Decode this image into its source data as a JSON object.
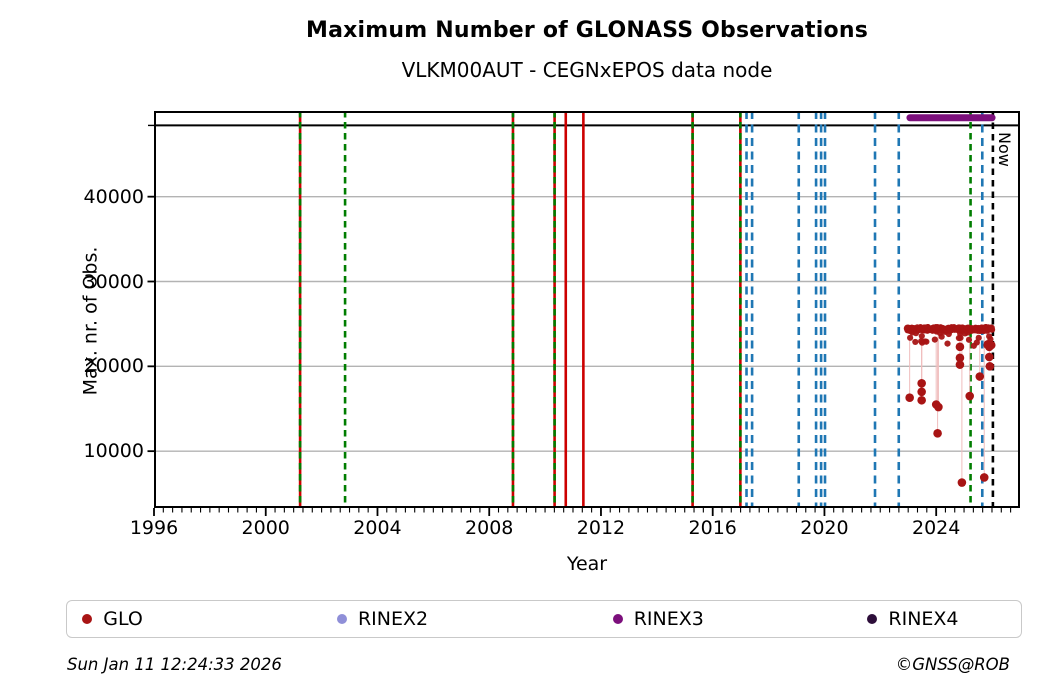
{
  "chart_data": {
    "type": "scatter",
    "title": "Maximum Number of GLONASS Observations",
    "subtitle": "VLKM00AUT - CEGNxEPOS data node",
    "xlabel": "Year",
    "ylabel": "Max. nr. of Obs.",
    "xlim": [
      1996,
      2027.0
    ],
    "ylim": [
      3300,
      50100
    ],
    "xticks": [
      1996,
      2000,
      2004,
      2008,
      2012,
      2016,
      2020,
      2024
    ],
    "x_minor_step_years": 0.3333,
    "yticks": [
      10000,
      20000,
      30000,
      40000
    ],
    "grid": "horizontal",
    "colors": {
      "glo": "#a81414",
      "rinex2": "#8f8fd8",
      "rinex3": "#7c0f7c",
      "rinex4": "#2d0e3a",
      "event_red": "#cc0000",
      "event_green": "#007d00",
      "event_blue": "#1f77b4",
      "now_line": "#000000",
      "grid": "#b3b3b3",
      "connector": "#f0bdbd",
      "spine": "#000000"
    },
    "availability_strip": {
      "divider_value": 48400,
      "bars": [
        {
          "name": "RINEX3",
          "color_key": "rinex3",
          "year_start": 2023.06,
          "year_end": 2026.0,
          "value": 49300
        }
      ]
    },
    "event_lines": [
      {
        "year": 2001.23,
        "color_key": "event_red",
        "style": "solid"
      },
      {
        "year": 2001.23,
        "color_key": "event_green",
        "style": "dashed"
      },
      {
        "year": 2002.84,
        "color_key": "event_green",
        "style": "dashed"
      },
      {
        "year": 2008.85,
        "color_key": "event_red",
        "style": "solid"
      },
      {
        "year": 2008.85,
        "color_key": "event_green",
        "style": "dashed"
      },
      {
        "year": 2010.34,
        "color_key": "event_red",
        "style": "solid"
      },
      {
        "year": 2010.34,
        "color_key": "event_green",
        "style": "dashed"
      },
      {
        "year": 2010.74,
        "color_key": "event_red",
        "style": "solid"
      },
      {
        "year": 2011.37,
        "color_key": "event_red",
        "style": "solid"
      },
      {
        "year": 2015.28,
        "color_key": "event_red",
        "style": "solid"
      },
      {
        "year": 2015.28,
        "color_key": "event_green",
        "style": "dashed"
      },
      {
        "year": 2016.99,
        "color_key": "event_red",
        "style": "solid"
      },
      {
        "year": 2016.99,
        "color_key": "event_green",
        "style": "dashed"
      },
      {
        "year": 2017.21,
        "color_key": "event_blue",
        "style": "dashed"
      },
      {
        "year": 2017.41,
        "color_key": "event_blue",
        "style": "dashed"
      },
      {
        "year": 2019.08,
        "color_key": "event_blue",
        "style": "dashed"
      },
      {
        "year": 2019.7,
        "color_key": "event_blue",
        "style": "dashed"
      },
      {
        "year": 2019.88,
        "color_key": "event_blue",
        "style": "dashed"
      },
      {
        "year": 2020.02,
        "color_key": "event_blue",
        "style": "dashed"
      },
      {
        "year": 2021.81,
        "color_key": "event_blue",
        "style": "dashed"
      },
      {
        "year": 2022.66,
        "color_key": "event_blue",
        "style": "dashed"
      },
      {
        "year": 2025.23,
        "color_key": "event_green",
        "style": "dashed"
      },
      {
        "year": 2025.65,
        "color_key": "event_blue",
        "style": "dashed"
      }
    ],
    "now_marker": {
      "year": 2026.03,
      "label": "Now",
      "style": "dashed",
      "color_key": "now_line"
    },
    "glo_band": {
      "year_start": 2022.95,
      "year_end": 2026.0,
      "value_typical": 24400,
      "value_top": 24620,
      "value_fringe_low": 22400,
      "points_per_band": 262
    },
    "glo_outliers": [
      [
        2023.05,
        16300
      ],
      [
        2023.48,
        18000
      ],
      [
        2023.48,
        17000
      ],
      [
        2023.48,
        16000
      ],
      [
        2024.0,
        15500
      ],
      [
        2024.08,
        15200
      ],
      [
        2024.05,
        12100
      ],
      [
        2024.85,
        22300
      ],
      [
        2024.85,
        21000
      ],
      [
        2024.85,
        20200
      ],
      [
        2024.92,
        6300
      ],
      [
        2025.2,
        16500
      ],
      [
        2025.56,
        18800
      ],
      [
        2025.72,
        6900
      ],
      [
        2025.85,
        22600
      ],
      [
        2025.9,
        22300
      ],
      [
        2025.9,
        21100
      ],
      [
        2025.92,
        20000
      ],
      [
        2025.97,
        22500
      ]
    ],
    "legend": [
      {
        "label": "GLO",
        "color_key": "glo"
      },
      {
        "label": "RINEX2",
        "color_key": "rinex2"
      },
      {
        "label": "RINEX3",
        "color_key": "rinex3"
      },
      {
        "label": "RINEX4",
        "color_key": "rinex4"
      }
    ],
    "legend_item_offsets_pct": [
      1.6,
      28.3,
      57.2,
      83.9
    ]
  },
  "footer": {
    "timestamp": "Sun Jan 11 12:24:33 2026",
    "credit": "©GNSS@ROB"
  }
}
